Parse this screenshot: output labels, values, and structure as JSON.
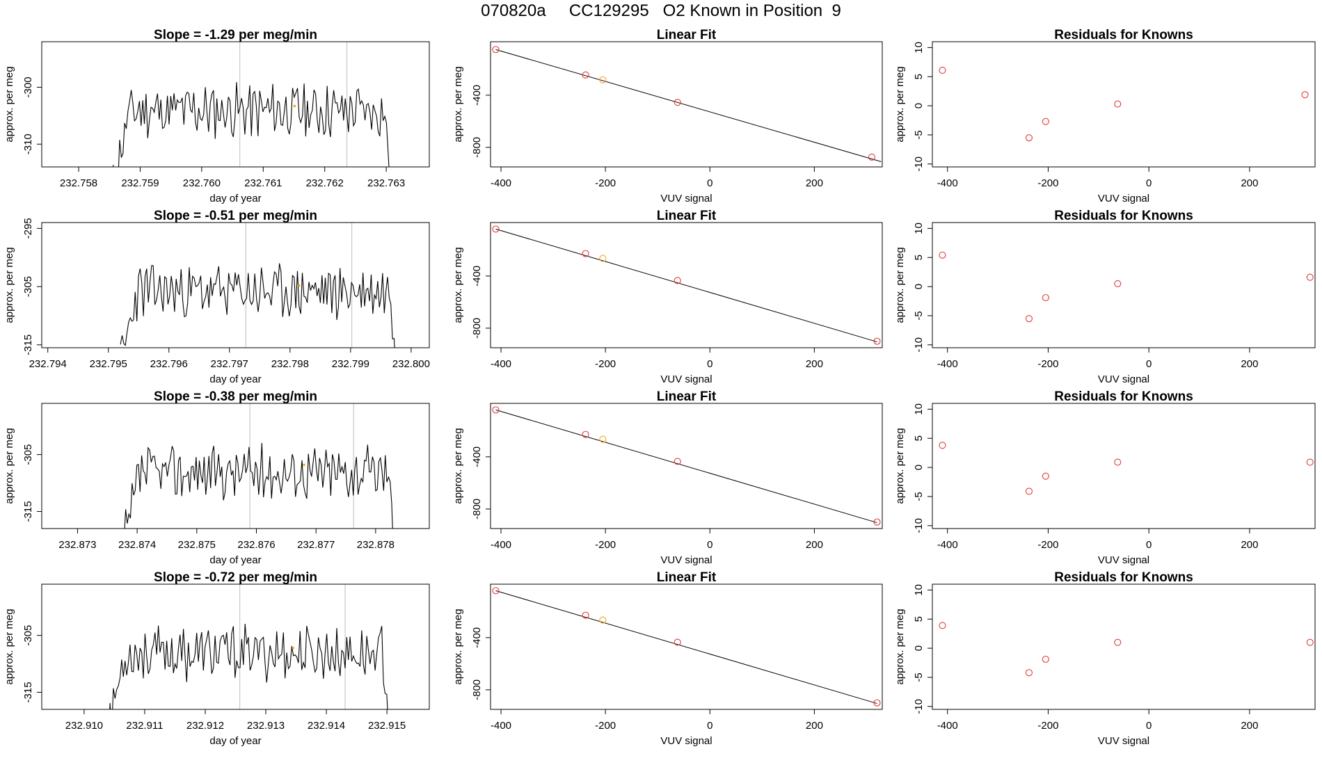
{
  "figure_title": "070820a     CC129295   O2 Known in Position  9",
  "colors": {
    "line": "#000000",
    "marker": "#e03a3a",
    "highlight": "#f5a623",
    "vline": "#c8c8c8"
  },
  "chart_data": [
    {
      "type": "line",
      "title": "Slope =  -1.29  per meg/min",
      "xlabel": "day of year",
      "ylabel": "approx. per meg",
      "xlim": [
        232.7574,
        232.7637
      ],
      "ylim": [
        -314,
        -292
      ],
      "xticks": [
        "232.758",
        "232.759",
        "232.760",
        "232.761",
        "232.762",
        "232.763"
      ],
      "yticks": [
        "-300",
        "-310"
      ],
      "data_start": 232.75856,
      "data_end": 232.76311,
      "vlines": [
        232.76062,
        232.76236
      ],
      "highlight": {
        "x": 232.76151,
        "y": -303.3
      },
      "seed": 11
    },
    {
      "type": "scatter",
      "title": "Linear Fit",
      "xlabel": "VUV signal",
      "ylabel": "approx. per meg",
      "xlim": [
        -420,
        330
      ],
      "ylim": [
        -950,
        10
      ],
      "xticks": [
        "-400",
        "-200",
        "0",
        "200"
      ],
      "yticks": [
        "-400",
        "-800"
      ],
      "points": [
        {
          "x": -410,
          "y": -50
        },
        {
          "x": -238,
          "y": -245
        },
        {
          "x": -205,
          "y": -282
        },
        {
          "x": -62,
          "y": -455
        },
        {
          "x": 310,
          "y": -875
        }
      ],
      "highlight_index": 2,
      "fit": [
        [
          -410,
          -50
        ],
        [
          328,
          -910
        ]
      ]
    },
    {
      "type": "scatter",
      "title": "Residuals for Knowns",
      "xlabel": "VUV signal",
      "ylabel": "approx. per meg",
      "xlim": [
        -430,
        330
      ],
      "ylim": [
        -10.5,
        11
      ],
      "xticks": [
        "-400",
        "-200",
        "0",
        "200"
      ],
      "yticks": [
        "10",
        "5",
        "0",
        "-5",
        "-10"
      ],
      "points": [
        {
          "x": -410,
          "y": 6.1
        },
        {
          "x": -238,
          "y": -5.5
        },
        {
          "x": -205,
          "y": -2.7
        },
        {
          "x": -62,
          "y": 0.3
        },
        {
          "x": 310,
          "y": 1.9
        }
      ]
    },
    {
      "type": "line",
      "title": "Slope =  -0.51  per meg/min",
      "xlabel": "day of year",
      "ylabel": "approx. per meg",
      "xlim": [
        232.7939,
        232.8003
      ],
      "ylim": [
        -315.5,
        -294
      ],
      "xticks": [
        "232.794",
        "232.795",
        "232.796",
        "232.797",
        "232.798",
        "232.799",
        "232.800"
      ],
      "yticks": [
        "-295",
        "-305",
        "-315"
      ],
      "data_start": 232.7952,
      "data_end": 232.7998,
      "vlines": [
        232.79727,
        232.79902
      ],
      "highlight": {
        "x": 232.79815,
        "y": -304.8
      },
      "seed": 23
    },
    {
      "type": "scatter",
      "title": "Linear Fit",
      "xlabel": "VUV signal",
      "ylabel": "approx. per meg",
      "xlim": [
        -420,
        330
      ],
      "ylim": [
        -950,
        10
      ],
      "xticks": [
        "-400",
        "-200",
        "0",
        "200"
      ],
      "yticks": [
        "-400",
        "-800"
      ],
      "points": [
        {
          "x": -410,
          "y": -40
        },
        {
          "x": -238,
          "y": -228
        },
        {
          "x": -205,
          "y": -265
        },
        {
          "x": -62,
          "y": -435
        },
        {
          "x": 320,
          "y": -900
        }
      ],
      "highlight_index": 2,
      "fit": [
        [
          -410,
          -40
        ],
        [
          320,
          -905
        ]
      ]
    },
    {
      "type": "scatter",
      "title": "Residuals for Knowns",
      "xlabel": "VUV signal",
      "ylabel": "approx. per meg",
      "xlim": [
        -430,
        330
      ],
      "ylim": [
        -10.5,
        11
      ],
      "xticks": [
        "-400",
        "-200",
        "0",
        "200"
      ],
      "yticks": [
        "10",
        "5",
        "0",
        "-5",
        "-10"
      ],
      "points": [
        {
          "x": -410,
          "y": 5.4
        },
        {
          "x": -238,
          "y": -5.5
        },
        {
          "x": -205,
          "y": -1.9
        },
        {
          "x": -62,
          "y": 0.5
        },
        {
          "x": 320,
          "y": 1.6
        }
      ]
    },
    {
      "type": "line",
      "title": "Slope =  -0.38  per meg/min",
      "xlabel": "day of year",
      "ylabel": "approx. per meg",
      "xlim": [
        232.8724,
        232.8789
      ],
      "ylim": [
        -318,
        -296
      ],
      "xticks": [
        "232.873",
        "232.874",
        "232.875",
        "232.876",
        "232.877",
        "232.878"
      ],
      "yticks": [
        "-305",
        "-315"
      ],
      "data_start": 232.87378,
      "data_end": 232.87835,
      "vlines": [
        232.87589,
        232.87763
      ],
      "highlight": {
        "x": 232.8768,
        "y": -306.8
      },
      "seed": 37
    },
    {
      "type": "scatter",
      "title": "Linear Fit",
      "xlabel": "VUV signal",
      "ylabel": "approx. per meg",
      "xlim": [
        -420,
        330
      ],
      "ylim": [
        -950,
        10
      ],
      "xticks": [
        "-400",
        "-200",
        "0",
        "200"
      ],
      "yticks": [
        "-400",
        "-800"
      ],
      "points": [
        {
          "x": -410,
          "y": -40
        },
        {
          "x": -238,
          "y": -228
        },
        {
          "x": -205,
          "y": -265
        },
        {
          "x": -62,
          "y": -435
        },
        {
          "x": 320,
          "y": -900
        }
      ],
      "highlight_index": 2,
      "fit": [
        [
          -410,
          -40
        ],
        [
          320,
          -905
        ]
      ]
    },
    {
      "type": "scatter",
      "title": "Residuals for Knowns",
      "xlabel": "VUV signal",
      "ylabel": "approx. per meg",
      "xlim": [
        -430,
        330
      ],
      "ylim": [
        -10.5,
        11
      ],
      "xticks": [
        "-400",
        "-200",
        "0",
        "200"
      ],
      "yticks": [
        "10",
        "5",
        "0",
        "-5",
        "-10"
      ],
      "points": [
        {
          "x": -410,
          "y": 3.8
        },
        {
          "x": -238,
          "y": -4.1
        },
        {
          "x": -205,
          "y": -1.5
        },
        {
          "x": -62,
          "y": 0.9
        },
        {
          "x": 320,
          "y": 0.9
        }
      ]
    },
    {
      "type": "line",
      "title": "Slope =  -0.72  per meg/min",
      "xlabel": "day of year",
      "ylabel": "approx. per meg",
      "xlim": [
        232.9093,
        232.9157
      ],
      "ylim": [
        -318,
        -296
      ],
      "xticks": [
        "232.910",
        "232.911",
        "232.912",
        "232.913",
        "232.914",
        "232.915"
      ],
      "yticks": [
        "-305",
        "-315"
      ],
      "data_start": 232.9104,
      "data_end": 232.91508,
      "vlines": [
        232.91257,
        232.91431
      ],
      "highlight": {
        "x": 232.91345,
        "y": -307.2
      },
      "seed": 53
    },
    {
      "type": "scatter",
      "title": "Linear Fit",
      "xlabel": "VUV signal",
      "ylabel": "approx. per meg",
      "xlim": [
        -420,
        330
      ],
      "ylim": [
        -950,
        10
      ],
      "xticks": [
        "-400",
        "-200",
        "0",
        "200"
      ],
      "yticks": [
        "-400",
        "-800"
      ],
      "points": [
        {
          "x": -410,
          "y": -40
        },
        {
          "x": -238,
          "y": -228
        },
        {
          "x": -205,
          "y": -265
        },
        {
          "x": -62,
          "y": -435
        },
        {
          "x": 320,
          "y": -900
        }
      ],
      "highlight_index": 2,
      "fit": [
        [
          -410,
          -40
        ],
        [
          320,
          -905
        ]
      ]
    },
    {
      "type": "scatter",
      "title": "Residuals for Knowns",
      "xlabel": "VUV signal",
      "ylabel": "approx. per meg",
      "xlim": [
        -430,
        330
      ],
      "ylim": [
        -10.5,
        11
      ],
      "xticks": [
        "-400",
        "-200",
        "0",
        "200"
      ],
      "yticks": [
        "10",
        "5",
        "0",
        "-5",
        "-10"
      ],
      "points": [
        {
          "x": -410,
          "y": 3.9
        },
        {
          "x": -238,
          "y": -4.2
        },
        {
          "x": -205,
          "y": -1.9
        },
        {
          "x": -62,
          "y": 1.0
        },
        {
          "x": 320,
          "y": 1.0
        }
      ]
    }
  ]
}
